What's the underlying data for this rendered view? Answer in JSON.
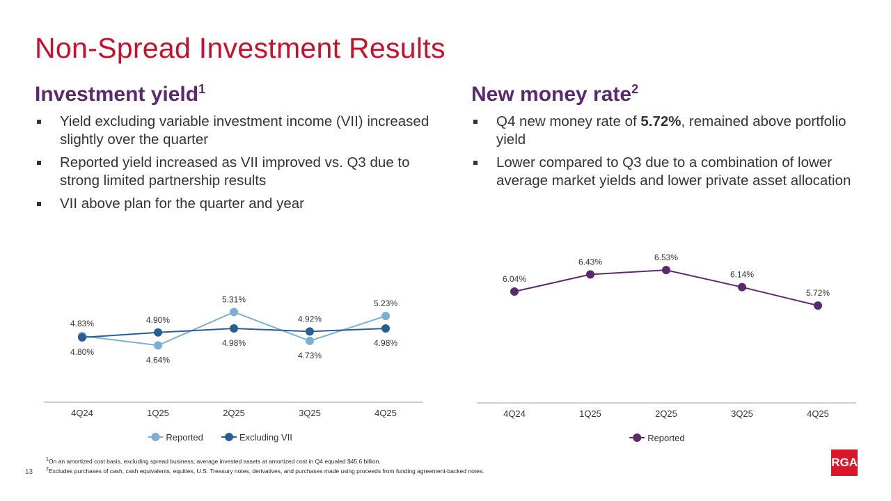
{
  "title": "Non-Spread Investment Results",
  "left": {
    "heading": "Investment yield",
    "heading_sup": "1",
    "bullets": [
      "Yield excluding variable investment income (VII) increased slightly over the quarter",
      "Reported yield increased as VII improved vs. Q3 due to strong limited partnership results",
      "VII above plan for the quarter and year"
    ]
  },
  "right": {
    "heading": "New money rate",
    "heading_sup": "2",
    "bullet1_pre": "Q4 new money rate of ",
    "bullet1_bold": "5.72%",
    "bullet1_post": ", remained above portfolio yield",
    "bullet2": "Lower compared to Q3 due to a combination of lower average market yields and lower private asset allocation"
  },
  "chart_data": [
    {
      "type": "line",
      "categories": [
        "4Q24",
        "1Q25",
        "2Q25",
        "3Q25",
        "4Q25"
      ],
      "series": [
        {
          "name": "Reported",
          "values": [
            4.83,
            4.64,
            5.31,
            4.73,
            5.23
          ],
          "labels": [
            "4.83%",
            "4.64%",
            "5.31%",
            "4.73%",
            "5.23%"
          ],
          "color": "#7bafd4"
        },
        {
          "name": "Excluding VII",
          "values": [
            4.8,
            4.9,
            4.98,
            4.92,
            4.98
          ],
          "labels": [
            "4.80%",
            "4.90%",
            "4.98%",
            "4.92%",
            "4.98%"
          ],
          "color": "#2a5d95"
        }
      ],
      "ylim": [
        3.5,
        5.6
      ],
      "grid": false,
      "legend": "bottom"
    },
    {
      "type": "line",
      "categories": [
        "4Q24",
        "1Q25",
        "2Q25",
        "3Q25",
        "4Q25"
      ],
      "series": [
        {
          "name": "Reported",
          "values": [
            6.04,
            6.43,
            6.53,
            6.14,
            5.72
          ],
          "labels": [
            "6.04%",
            "6.43%",
            "6.53%",
            "6.14%",
            "5.72%"
          ],
          "color": "#5b2a6e"
        }
      ],
      "ylim": [
        3.5,
        6.8
      ],
      "grid": false,
      "legend": "bottom"
    }
  ],
  "footnotes": [
    {
      "mark": "1",
      "text": "On an amortized cost basis, excluding spread business; average invested assets at amortized cost in Q4 equaled $45.6 billion."
    },
    {
      "mark": "2",
      "text": "Excludes purchases of cash, cash equivalents, equities, U.S. Treasury notes, derivatives, and purchases made using proceeds from funding agreement-backed notes."
    }
  ],
  "page_number": "13",
  "logo_text": "RGA",
  "colors": {
    "title": "#c8102e",
    "heading": "#5b2a6e",
    "logo": "#d7182a"
  }
}
